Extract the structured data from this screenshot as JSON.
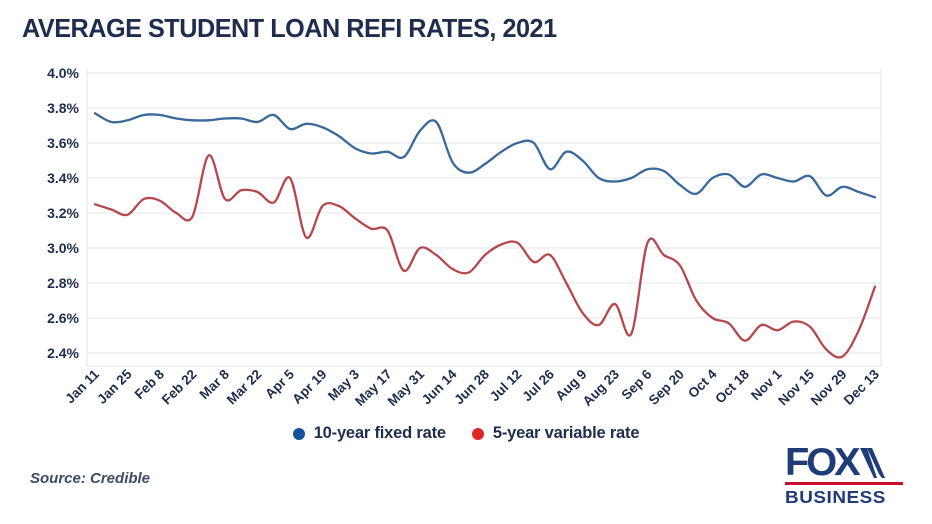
{
  "title": "AVERAGE STUDENT LOAN REFI RATES, 2021",
  "source": "Source: Credible",
  "logo": {
    "line1": "FOX",
    "line2": "BUSINESS",
    "navy": "#1d3c78",
    "red": "#c8102e"
  },
  "legend": [
    {
      "label": "10-year fixed rate",
      "color": "#16519e"
    },
    {
      "label": "5-year variable rate",
      "color": "#dd2727"
    }
  ],
  "colors": {
    "text_navy": "#1e2c4e",
    "gridline": "#e9e9e9",
    "plot_border": "#e4e4e4",
    "fixed_line": "#38689c",
    "variable_line": "#b4484c",
    "background": "#ffffff"
  },
  "chart_data": {
    "type": "line",
    "title": "AVERAGE STUDENT LOAN REFI RATES, 2021",
    "xlabel": "",
    "ylabel": "",
    "grid": true,
    "legend_position": "bottom",
    "ylim": [
      2.33,
      4.0
    ],
    "y_ticks": [
      4.0,
      3.8,
      3.6,
      3.4,
      3.2,
      3.0,
      2.8,
      2.6,
      2.4
    ],
    "y_tick_labels": [
      "4.0%",
      "3.8%",
      "3.6%",
      "3.4%",
      "3.2%",
      "3.0%",
      "2.8%",
      "2.6%",
      "2.4%"
    ],
    "x_tick_labels": [
      "Jan 11",
      "Jan 25",
      "Feb 8",
      "Feb 22",
      "Mar 8",
      "Mar 22",
      "Apr 5",
      "Apr 19",
      "May 3",
      "May 17",
      "May 31",
      "Jun 14",
      "Jun 28",
      "Jul 12",
      "Jul 26",
      "Aug 9",
      "Aug 23",
      "Sep 6",
      "Sep 20",
      "Oct 4",
      "Oct 18",
      "Nov 1",
      "Nov 15",
      "Nov 29",
      "Dec 13"
    ],
    "x": [
      "Jan 11",
      "Jan 18",
      "Jan 25",
      "Feb 1",
      "Feb 8",
      "Feb 15",
      "Feb 22",
      "Mar 1",
      "Mar 8",
      "Mar 15",
      "Mar 22",
      "Mar 29",
      "Apr 5",
      "Apr 12",
      "Apr 19",
      "Apr 26",
      "May 3",
      "May 10",
      "May 17",
      "May 24",
      "May 31",
      "Jun 7",
      "Jun 14",
      "Jun 21",
      "Jun 28",
      "Jul 5",
      "Jul 12",
      "Jul 19",
      "Jul 26",
      "Aug 2",
      "Aug 9",
      "Aug 16",
      "Aug 23",
      "Aug 30",
      "Sep 6",
      "Sep 13",
      "Sep 20",
      "Sep 27",
      "Oct 4",
      "Oct 11",
      "Oct 18",
      "Oct 25",
      "Nov 1",
      "Nov 8",
      "Nov 15",
      "Nov 22",
      "Nov 29",
      "Dec 6",
      "Dec 13"
    ],
    "series": [
      {
        "name": "10-year fixed rate",
        "color": "#38689c",
        "values": [
          3.77,
          3.72,
          3.73,
          3.76,
          3.76,
          3.74,
          3.73,
          3.73,
          3.74,
          3.74,
          3.72,
          3.76,
          3.68,
          3.71,
          3.69,
          3.64,
          3.57,
          3.54,
          3.55,
          3.52,
          3.67,
          3.72,
          3.49,
          3.43,
          3.48,
          3.55,
          3.6,
          3.6,
          3.45,
          3.55,
          3.5,
          3.4,
          3.38,
          3.4,
          3.45,
          3.44,
          3.36,
          3.31,
          3.4,
          3.42,
          3.35,
          3.42,
          3.4,
          3.38,
          3.41,
          3.3,
          3.35,
          3.32,
          3.29
        ]
      },
      {
        "name": "5-year variable rate",
        "color": "#b4484c",
        "values": [
          3.25,
          3.22,
          3.19,
          3.28,
          3.27,
          3.2,
          3.18,
          3.53,
          3.28,
          3.33,
          3.32,
          3.26,
          3.4,
          3.06,
          3.24,
          3.24,
          3.17,
          3.11,
          3.1,
          2.87,
          3.0,
          2.96,
          2.88,
          2.86,
          2.96,
          3.02,
          3.03,
          2.92,
          2.96,
          2.8,
          2.63,
          2.56,
          2.68,
          2.51,
          3.03,
          2.96,
          2.9,
          2.7,
          2.6,
          2.57,
          2.47,
          2.56,
          2.53,
          2.58,
          2.55,
          2.42,
          2.38,
          2.53,
          2.78
        ]
      }
    ]
  }
}
